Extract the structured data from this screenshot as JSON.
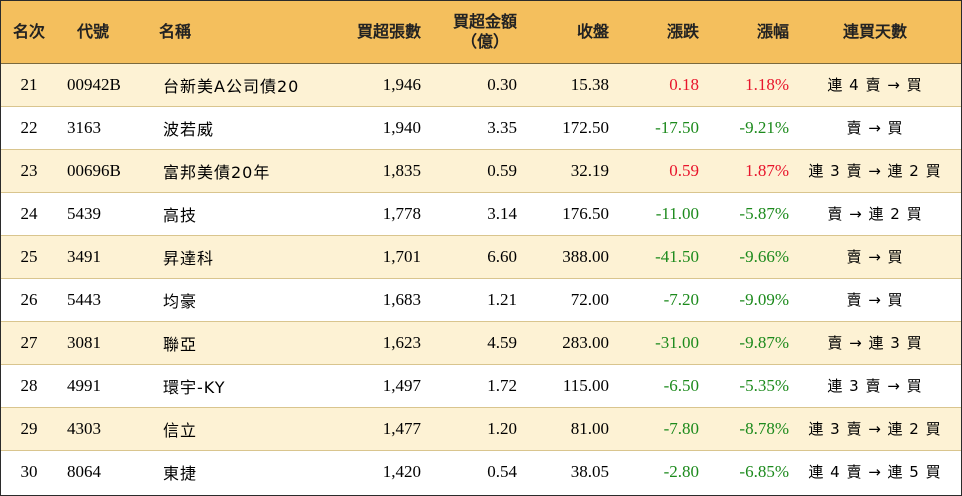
{
  "header": {
    "rank": "名次",
    "code": "代號",
    "name": "名稱",
    "net_buy_lots": "買超張數",
    "net_buy_amount_line1": "買超金額",
    "net_buy_amount_line2": "（億）",
    "close": "收盤",
    "change": "漲跌",
    "change_pct": "漲幅",
    "consecutive_buy_days": "連買天數"
  },
  "colors": {
    "header_bg": "#f4bf5d",
    "alt_row_bg": "#fdf2d4",
    "up": "#e8142b",
    "down": "#1c8a1c"
  },
  "rows": [
    {
      "rank": "21",
      "code": "00942B",
      "name": "台新美A公司債20",
      "lots": "1,946",
      "amount": "0.30",
      "close": "15.38",
      "change": "0.18",
      "pct": "1.18%",
      "dir": "up",
      "streak": "連 4 賣 → 買"
    },
    {
      "rank": "22",
      "code": "3163",
      "name": "波若威",
      "lots": "1,940",
      "amount": "3.35",
      "close": "172.50",
      "change": "-17.50",
      "pct": "-9.21%",
      "dir": "down",
      "streak": "賣 → 買"
    },
    {
      "rank": "23",
      "code": "00696B",
      "name": "富邦美債20年",
      "lots": "1,835",
      "amount": "0.59",
      "close": "32.19",
      "change": "0.59",
      "pct": "1.87%",
      "dir": "up",
      "streak": "連 3 賣 → 連 2 買"
    },
    {
      "rank": "24",
      "code": "5439",
      "name": "高技",
      "lots": "1,778",
      "amount": "3.14",
      "close": "176.50",
      "change": "-11.00",
      "pct": "-5.87%",
      "dir": "down",
      "streak": "賣 → 連 2 買"
    },
    {
      "rank": "25",
      "code": "3491",
      "name": "昇達科",
      "lots": "1,701",
      "amount": "6.60",
      "close": "388.00",
      "change": "-41.50",
      "pct": "-9.66%",
      "dir": "down",
      "streak": "賣 → 買"
    },
    {
      "rank": "26",
      "code": "5443",
      "name": "均豪",
      "lots": "1,683",
      "amount": "1.21",
      "close": "72.00",
      "change": "-7.20",
      "pct": "-9.09%",
      "dir": "down",
      "streak": "賣 → 買"
    },
    {
      "rank": "27",
      "code": "3081",
      "name": "聯亞",
      "lots": "1,623",
      "amount": "4.59",
      "close": "283.00",
      "change": "-31.00",
      "pct": "-9.87%",
      "dir": "down",
      "streak": "賣 → 連 3 買"
    },
    {
      "rank": "28",
      "code": "4991",
      "name": "環宇-KY",
      "lots": "1,497",
      "amount": "1.72",
      "close": "115.00",
      "change": "-6.50",
      "pct": "-5.35%",
      "dir": "down",
      "streak": "連 3 賣 → 買"
    },
    {
      "rank": "29",
      "code": "4303",
      "name": "信立",
      "lots": "1,477",
      "amount": "1.20",
      "close": "81.00",
      "change": "-7.80",
      "pct": "-8.78%",
      "dir": "down",
      "streak": "連 3 賣 → 連 2 買"
    },
    {
      "rank": "30",
      "code": "8064",
      "name": "東捷",
      "lots": "1,420",
      "amount": "0.54",
      "close": "38.05",
      "change": "-2.80",
      "pct": "-6.85%",
      "dir": "down",
      "streak": "連 4 賣 → 連 5 買"
    }
  ]
}
